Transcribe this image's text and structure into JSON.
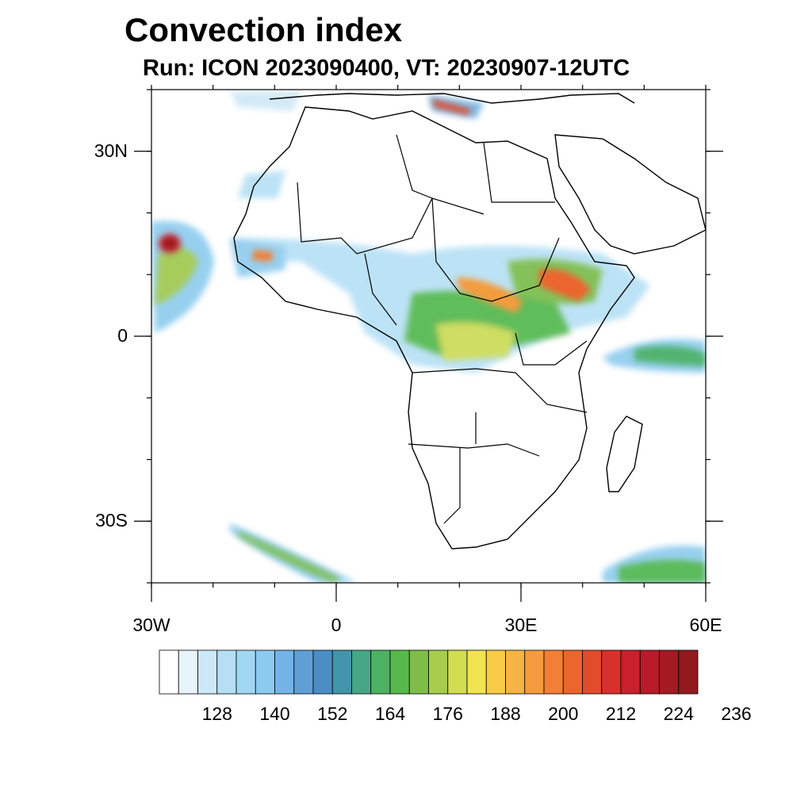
{
  "title": "Convection index",
  "subtitle": "Run: ICON 2023090400,  VT: 20230907-12UTC",
  "map": {
    "extent": {
      "lon_min": -30,
      "lon_max": 60,
      "lat_min": -40,
      "lat_max": 40
    },
    "lat_ticks": [
      {
        "value": 30,
        "label": "30N"
      },
      {
        "value": 0,
        "label": "0"
      },
      {
        "value": -30,
        "label": "30S"
      }
    ],
    "lon_ticks": [
      {
        "value": -30,
        "label": "30W"
      },
      {
        "value": 0,
        "label": "0"
      },
      {
        "value": 30,
        "label": "30E"
      },
      {
        "value": 60,
        "label": "60E"
      }
    ]
  },
  "colorbar": {
    "colors": [
      "#ffffff",
      "#e8f4fb",
      "#cde8f6",
      "#b5dff5",
      "#a0d8f3",
      "#8ccbee",
      "#73b4e4",
      "#5e9fd6",
      "#4a8ec5",
      "#4294aa",
      "#45a785",
      "#4cb163",
      "#57b94b",
      "#7ebe48",
      "#a8cc4c",
      "#d2dd52",
      "#f2e451",
      "#f8cb47",
      "#f6b444",
      "#f49b3e",
      "#f27f35",
      "#ec652f",
      "#e24b2c",
      "#d9302c",
      "#c9202c",
      "#b71a29",
      "#a51a22",
      "#921a1e"
    ],
    "labels": [
      "128",
      "140",
      "152",
      "164",
      "176",
      "188",
      "200",
      "212",
      "224",
      "236"
    ]
  },
  "legend_icons": {
    "coastline": "coastline-lines",
    "borders": "country-border-lines"
  }
}
